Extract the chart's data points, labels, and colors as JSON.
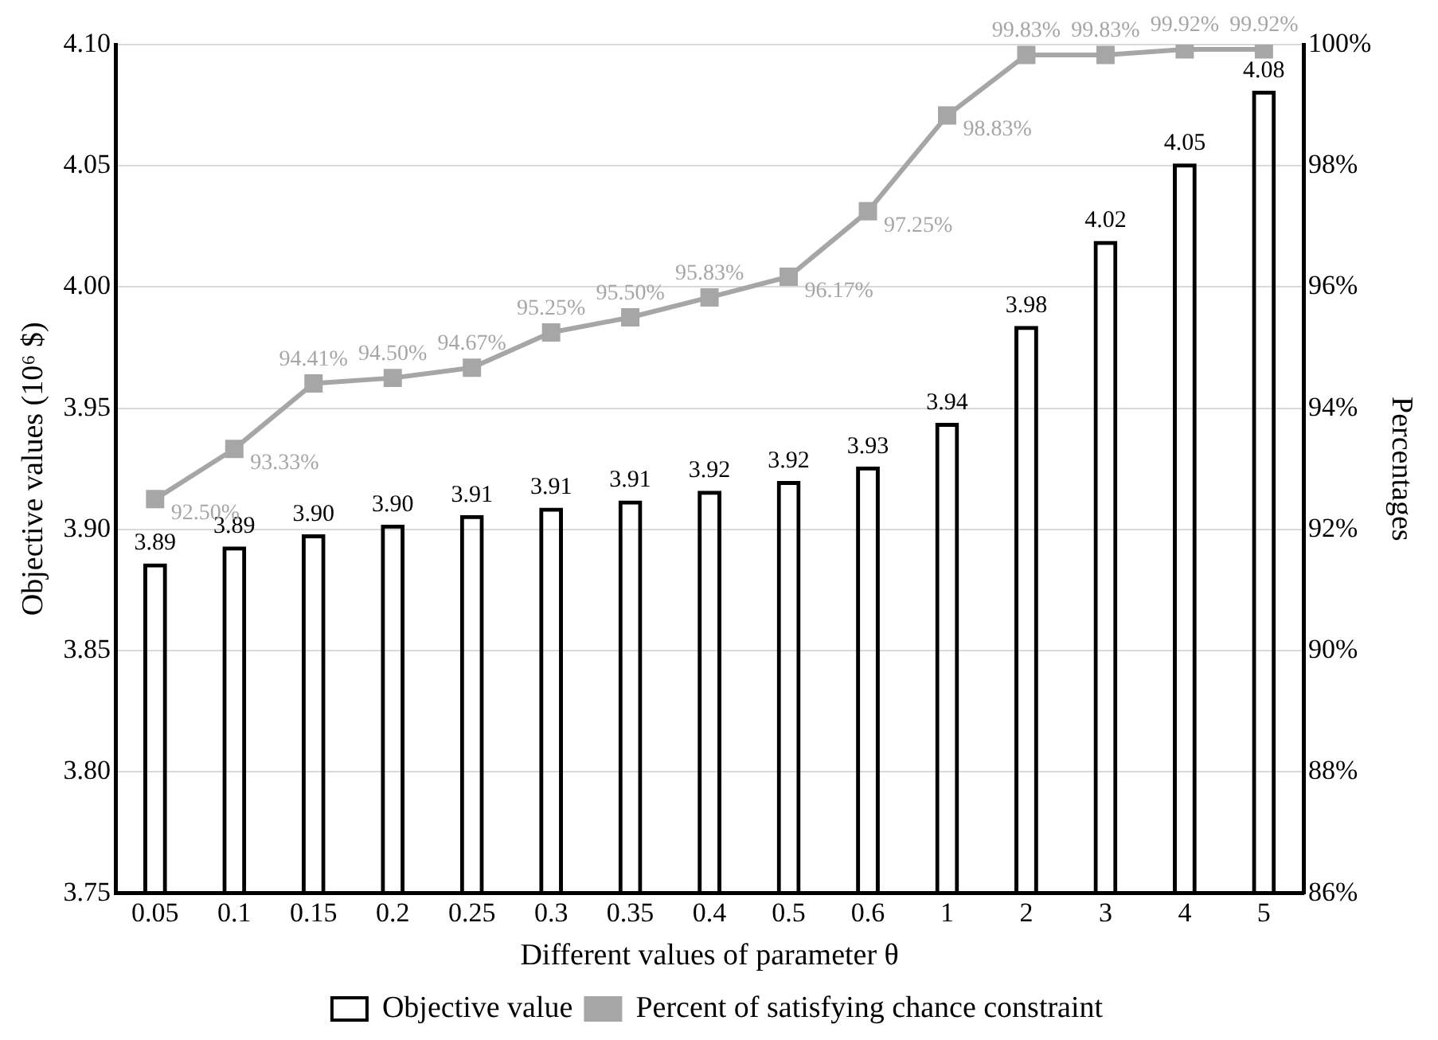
{
  "chart_data": {
    "type": "bar",
    "xlabel": "Different values of parameter θ",
    "ylabel": "Objective values (10⁶ $)",
    "y2label": "Percentages",
    "categories": [
      "0.05",
      "0.1",
      "0.15",
      "0.2",
      "0.25",
      "0.3",
      "0.35",
      "0.4",
      "0.5",
      "0.6",
      "1",
      "2",
      "3",
      "4",
      "5"
    ],
    "series": [
      {
        "name": "Objective value",
        "color": "#000000",
        "values": [
          3.886,
          3.893,
          3.898,
          3.902,
          3.906,
          3.909,
          3.912,
          3.916,
          3.92,
          3.926,
          3.944,
          3.984,
          4.019,
          4.051,
          4.081
        ],
        "value_labels": [
          "3.89",
          "3.89",
          "3.90",
          "3.90",
          "3.91",
          "3.91",
          "3.91",
          "3.92",
          "3.92",
          "3.93",
          "3.94",
          "3.98",
          "4.02",
          "4.05",
          "4.08"
        ]
      },
      {
        "name": "Percent of satisfying chance constraint",
        "type": "line",
        "axis": "y2",
        "color": "#a6a6a6",
        "marker": "square",
        "values": [
          92.5,
          93.33,
          94.41,
          94.5,
          94.67,
          95.25,
          95.5,
          95.83,
          96.17,
          97.25,
          98.83,
          99.83,
          99.83,
          99.92,
          99.92
        ],
        "value_labels": [
          "92.50%",
          "93.33%",
          "94.41%",
          "94.50%",
          "94.67%",
          "95.25%",
          "95.50%",
          "95.83%",
          "96.17%",
          "97.25%",
          "98.83%",
          "99.83%",
          "99.83%",
          "99.92%",
          "99.92%"
        ]
      }
    ],
    "ylim": [
      3.75,
      4.1
    ],
    "yticks": [
      {
        "value": 3.75,
        "label": "3.75"
      },
      {
        "value": 3.8,
        "label": "3.80"
      },
      {
        "value": 3.85,
        "label": "3.85"
      },
      {
        "value": 3.9,
        "label": "3.90"
      },
      {
        "value": 3.95,
        "label": "3.95"
      },
      {
        "value": 4.0,
        "label": "4.00"
      },
      {
        "value": 4.05,
        "label": "4.05"
      },
      {
        "value": 4.1,
        "label": "4.10"
      }
    ],
    "y2lim": [
      86,
      100
    ],
    "y2ticks": [
      {
        "value": 86,
        "label": "86%"
      },
      {
        "value": 88,
        "label": "88%"
      },
      {
        "value": 90,
        "label": "90%"
      },
      {
        "value": 92,
        "label": "92%"
      },
      {
        "value": 94,
        "label": "94%"
      },
      {
        "value": 96,
        "label": "96%"
      },
      {
        "value": 98,
        "label": "98%"
      },
      {
        "value": 100,
        "label": "100%"
      }
    ],
    "grid": "y",
    "legend": "bottom"
  }
}
